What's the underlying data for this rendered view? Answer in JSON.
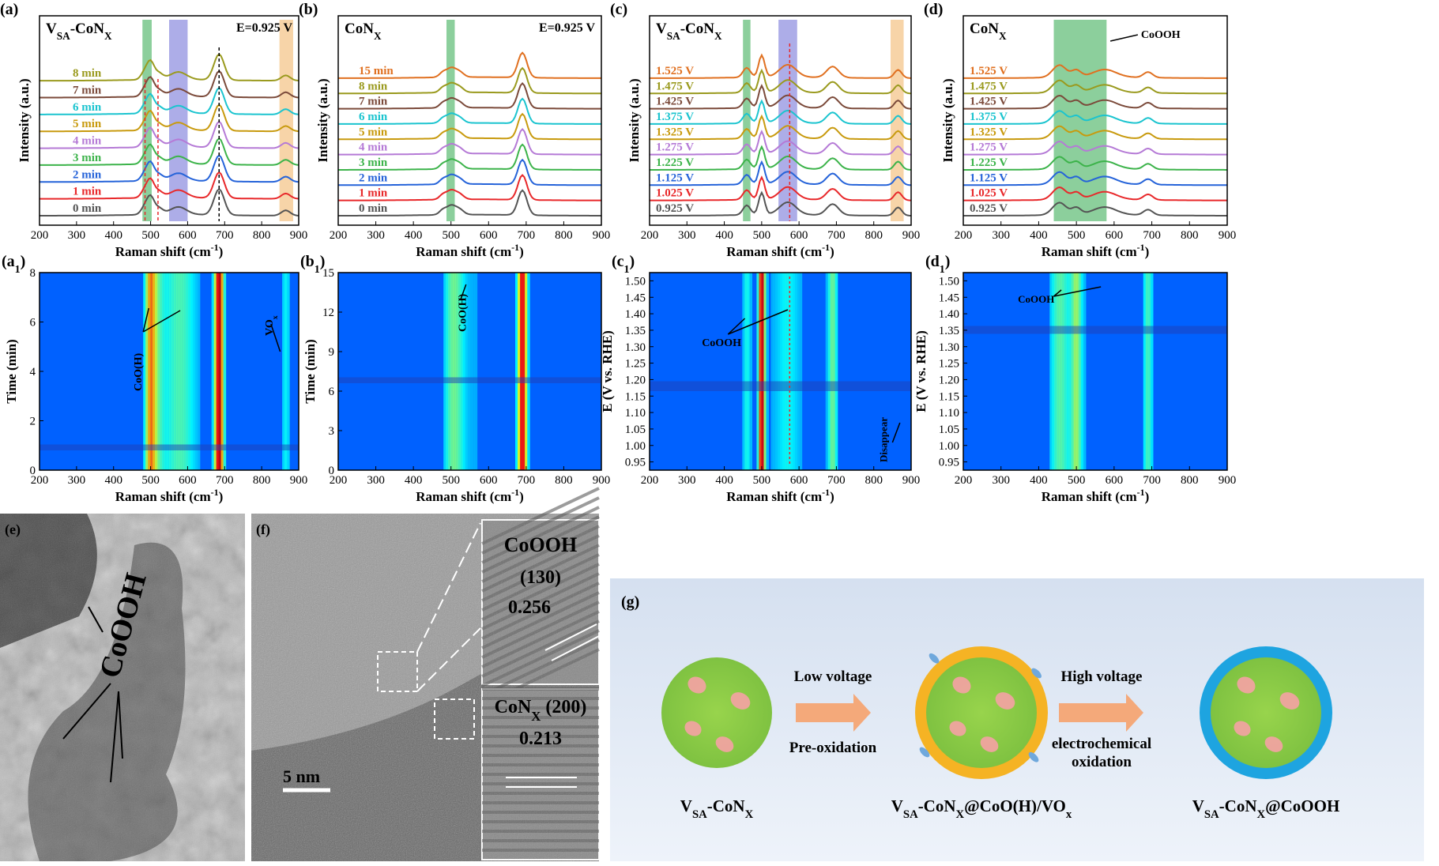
{
  "panels": {
    "a": {
      "label": "(a)",
      "title": "VSA-CoNX",
      "energy": "E=0.925 V"
    },
    "b": {
      "label": "(b)",
      "title": "CoNX",
      "energy": "E=0.925 V"
    },
    "c": {
      "label": "(c)",
      "title": "VSA-CoNX"
    },
    "d": {
      "label": "(d)",
      "title": "CoNX",
      "annotation": "CoOOH"
    },
    "a1": {
      "label": "(a1)",
      "annotations": [
        "CoO(H)",
        "VOx"
      ]
    },
    "b1": {
      "label": "(b1)",
      "annotations": [
        "CoO(H)"
      ]
    },
    "c1": {
      "label": "(c1)",
      "annotations": [
        "CoOOH",
        "Disappear"
      ]
    },
    "d1": {
      "label": "(d1)",
      "annotations": [
        "CoOOH"
      ]
    },
    "e": {
      "label": "(e)",
      "annotation": "CoOOH"
    },
    "f": {
      "label": "(f)",
      "scale_bar": "5 nm",
      "inset_top": {
        "phase": "CoOOH",
        "plane": "(130)",
        "d": "0.256"
      },
      "inset_bottom": {
        "phase": "CoNX (200)",
        "d": "0.213"
      }
    },
    "g": {
      "label": "(g)",
      "step1": {
        "top": "Low voltage",
        "bottom": "Pre-oxidation"
      },
      "step2": {
        "top": "High voltage",
        "bottom1": "electrochemical",
        "bottom2": "oxidation"
      },
      "labels": [
        "VSA-CoNX",
        "VSA-CoNX@CoO(H)/VOx",
        "VSA-CoNX@CoOOH"
      ]
    }
  },
  "chart_data": [
    {
      "id": "a",
      "type": "line",
      "xlabel": "Raman shift (cm-1)",
      "ylabel": "Intensity (a.u.)",
      "xlim": [
        200,
        900
      ],
      "xticks": [
        200,
        300,
        400,
        500,
        600,
        700,
        800,
        900
      ],
      "series": [
        {
          "name": "0 min",
          "color": "#545454"
        },
        {
          "name": "1 min",
          "color": "#e8282a"
        },
        {
          "name": "2 min",
          "color": "#2563d9"
        },
        {
          "name": "3 min",
          "color": "#3cb34a"
        },
        {
          "name": "4 min",
          "color": "#b57ad6"
        },
        {
          "name": "5 min",
          "color": "#c89a0e"
        },
        {
          "name": "6 min",
          "color": "#1bc4cf"
        },
        {
          "name": "7 min",
          "color": "#7b4a3a"
        },
        {
          "name": "8 min",
          "color": "#9a9a1e"
        }
      ],
      "peaks": [
        {
          "x": 485,
          "h": 0.55,
          "w": 10
        },
        {
          "x": 500,
          "h": 1.0,
          "w": 9
        },
        {
          "x": 520,
          "h": 0.45,
          "w": 12
        },
        {
          "x": 575,
          "h": 0.5,
          "w": 22
        },
        {
          "x": 685,
          "h": 1.7,
          "w": 14
        },
        {
          "x": 865,
          "h": 0.35,
          "w": 12
        }
      ],
      "bands": [
        {
          "x0": 478,
          "x1": 503,
          "color": "#2ea84a"
        },
        {
          "x0": 550,
          "x1": 600,
          "color": "#6a6ad6"
        },
        {
          "x0": 848,
          "x1": 885,
          "color": "#f0b060"
        }
      ]
    },
    {
      "id": "b",
      "type": "line",
      "xlabel": "Raman shift (cm-1)",
      "ylabel": "Intensity (a.u.)",
      "xlim": [
        200,
        900
      ],
      "xticks": [
        200,
        300,
        400,
        500,
        600,
        700,
        800,
        900
      ],
      "series": [
        {
          "name": "0 min",
          "color": "#545454"
        },
        {
          "name": "1 min",
          "color": "#e8282a"
        },
        {
          "name": "2 min",
          "color": "#2563d9"
        },
        {
          "name": "3 min",
          "color": "#3cb34a"
        },
        {
          "name": "4 min",
          "color": "#b57ad6"
        },
        {
          "name": "5 min",
          "color": "#c89a0e"
        },
        {
          "name": "6 min",
          "color": "#1bc4cf"
        },
        {
          "name": "7 min",
          "color": "#7b4a3a"
        },
        {
          "name": "8 min",
          "color": "#9a9a1e"
        },
        {
          "name": "15 min",
          "color": "#e07020"
        }
      ],
      "peaks": [
        {
          "x": 480,
          "h": 0.4,
          "w": 10
        },
        {
          "x": 500,
          "h": 0.55,
          "w": 10
        },
        {
          "x": 520,
          "h": 0.45,
          "w": 12
        },
        {
          "x": 690,
          "h": 1.8,
          "w": 12
        }
      ],
      "bands": [
        {
          "x0": 488,
          "x1": 510,
          "color": "#2ea84a"
        }
      ]
    },
    {
      "id": "c",
      "type": "line",
      "xlabel": "Raman shift (cm-1)",
      "ylabel": "Intensity (a.u.)",
      "xlim": [
        200,
        900
      ],
      "xticks": [
        200,
        300,
        400,
        500,
        600,
        700,
        800,
        900
      ],
      "series": [
        {
          "name": "0.925 V",
          "color": "#545454"
        },
        {
          "name": "1.025 V",
          "color": "#e8282a"
        },
        {
          "name": "1.125 V",
          "color": "#2563d9"
        },
        {
          "name": "1.225 V",
          "color": "#3cb34a"
        },
        {
          "name": "1.275 V",
          "color": "#b57ad6"
        },
        {
          "name": "1.325 V",
          "color": "#c89a0e"
        },
        {
          "name": "1.375 V",
          "color": "#1bc4cf"
        },
        {
          "name": "1.425 V",
          "color": "#7b4a3a"
        },
        {
          "name": "1.475 V",
          "color": "#9a9a1e"
        },
        {
          "name": "1.525 V",
          "color": "#e07020"
        }
      ],
      "peaks": [
        {
          "x": 460,
          "h": 0.7,
          "w": 10
        },
        {
          "x": 500,
          "h": 1.6,
          "w": 8
        },
        {
          "x": 570,
          "h": 0.9,
          "w": 22
        },
        {
          "x": 690,
          "h": 0.8,
          "w": 16
        },
        {
          "x": 865,
          "h": 0.6,
          "w": 10
        }
      ],
      "bands": [
        {
          "x0": 450,
          "x1": 470,
          "color": "#2ea84a"
        },
        {
          "x0": 545,
          "x1": 595,
          "color": "#6a6ad6"
        },
        {
          "x0": 845,
          "x1": 880,
          "color": "#f0b060"
        }
      ]
    },
    {
      "id": "d",
      "type": "line",
      "xlabel": "Raman shift (cm-1)",
      "ylabel": "Intensity (a.u.)",
      "xlim": [
        200,
        900
      ],
      "xticks": [
        200,
        300,
        400,
        500,
        600,
        700,
        800,
        900
      ],
      "series": [
        {
          "name": "0.925 V",
          "color": "#545454"
        },
        {
          "name": "1.025 V",
          "color": "#e8282a"
        },
        {
          "name": "1.125 V",
          "color": "#2563d9"
        },
        {
          "name": "1.225 V",
          "color": "#3cb34a"
        },
        {
          "name": "1.275 V",
          "color": "#b57ad6"
        },
        {
          "name": "1.325 V",
          "color": "#c89a0e"
        },
        {
          "name": "1.375 V",
          "color": "#1bc4cf"
        },
        {
          "name": "1.425 V",
          "color": "#7b4a3a"
        },
        {
          "name": "1.475 V",
          "color": "#9a9a1e"
        },
        {
          "name": "1.525 V",
          "color": "#e07020"
        }
      ],
      "peaks": [
        {
          "x": 455,
          "h": 0.9,
          "w": 18
        },
        {
          "x": 500,
          "h": 0.5,
          "w": 12
        },
        {
          "x": 575,
          "h": 0.55,
          "w": 30
        },
        {
          "x": 690,
          "h": 0.4,
          "w": 12
        }
      ],
      "bands": [
        {
          "x0": 440,
          "x1": 580,
          "color": "#2ea84a"
        }
      ]
    },
    {
      "id": "a1",
      "type": "heatmap",
      "xlabel": "Raman shift (cm-1)",
      "ylabel": "Time (min)",
      "xlim": [
        200,
        900
      ],
      "ylim": [
        0,
        8
      ],
      "xticks": [
        200,
        300,
        400,
        500,
        600,
        700,
        800,
        900
      ],
      "yticks": [
        0,
        2,
        4,
        6,
        8
      ]
    },
    {
      "id": "b1",
      "type": "heatmap",
      "xlabel": "Raman shift (cm-1)",
      "ylabel": "Time (min)",
      "xlim": [
        200,
        900
      ],
      "ylim": [
        0,
        15
      ],
      "xticks": [
        200,
        300,
        400,
        500,
        600,
        700,
        800,
        900
      ],
      "yticks": [
        0,
        3,
        6,
        9,
        12,
        15
      ]
    },
    {
      "id": "c1",
      "type": "heatmap",
      "xlabel": "Raman shift (cm-1)",
      "ylabel": "E (V vs. RHE)",
      "xlim": [
        200,
        900
      ],
      "ylim": [
        0.925,
        1.525
      ],
      "xticks": [
        200,
        300,
        400,
        500,
        600,
        700,
        800,
        900
      ],
      "yticks": [
        "0.95",
        "1.00",
        "1.05",
        "1.10",
        "1.15",
        "1.20",
        "1.25",
        "1.30",
        "1.35",
        "1.40",
        "1.45",
        "1.50"
      ]
    },
    {
      "id": "d1",
      "type": "heatmap",
      "xlabel": "Raman shift (cm-1)",
      "ylabel": "E (V vs. RHE)",
      "xlim": [
        200,
        900
      ],
      "ylim": [
        0.925,
        1.525
      ],
      "xticks": [
        200,
        300,
        400,
        500,
        600,
        700,
        800,
        900
      ],
      "yticks": [
        "0.95",
        "1.00",
        "1.05",
        "1.10",
        "1.15",
        "1.20",
        "1.25",
        "1.30",
        "1.35",
        "1.40",
        "1.45",
        "1.50"
      ]
    }
  ]
}
